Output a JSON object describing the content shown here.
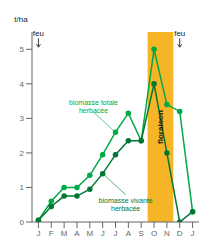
{
  "chart_data": {
    "type": "line",
    "categories": [
      "J",
      "F",
      "M",
      "A",
      "M",
      "J",
      "J",
      "A",
      "S",
      "O",
      "N",
      "D",
      "J"
    ],
    "series": [
      {
        "name": "biomasse totale herbacée",
        "color": "#00aa44",
        "marker": "circle",
        "values": [
          0.05,
          0.6,
          1.0,
          1.0,
          1.35,
          1.95,
          2.6,
          3.15,
          2.35,
          5.0,
          3.4,
          3.2,
          0.3
        ]
      },
      {
        "name": "biomasse vivante herbacée",
        "color": "#007733",
        "marker": "circle",
        "values": [
          0.05,
          0.45,
          0.75,
          0.75,
          0.95,
          1.4,
          1.95,
          2.35,
          2.35,
          4.0,
          2.0,
          0.0,
          0.3
        ]
      }
    ],
    "y_label": "t/ha",
    "ylim": [
      0,
      5.5
    ],
    "yticks": [
      0,
      1,
      2,
      3,
      4,
      5
    ],
    "annotations": [
      {
        "text": "feu",
        "x": 0,
        "y": 5.0
      },
      {
        "text": "feu",
        "x": 11,
        "y": 5.0
      },
      {
        "text": "floraison",
        "x": [
          9,
          10
        ],
        "color": "#f5a800"
      }
    ]
  }
}
